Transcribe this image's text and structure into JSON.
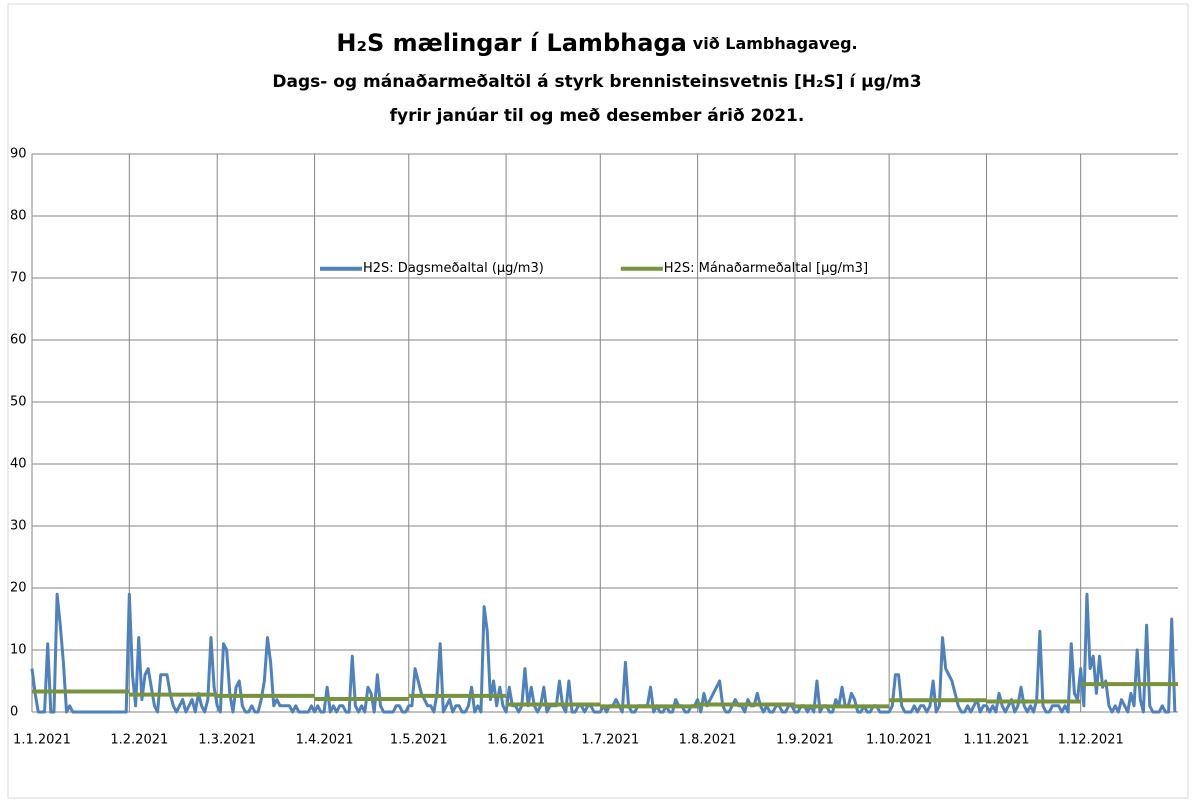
{
  "chart_data": {
    "type": "line",
    "title": {
      "main": "H₂S mælingar í Lambhaga",
      "small": "við Lambhagaveg."
    },
    "subtitle": [
      "Dags- og mánaðarmeðaltöl á styrk brennisteinsvetnis [H₂S] í µg/m3",
      "fyrir janúar til og með desember árið 2021."
    ],
    "xlim": [
      0,
      365
    ],
    "xticks": [
      {
        "value": 0,
        "label": "1.1.2021"
      },
      {
        "value": 31,
        "label": "1.2.2021"
      },
      {
        "value": 59,
        "label": "1.3.2021"
      },
      {
        "value": 90,
        "label": "1.4.2021"
      },
      {
        "value": 120,
        "label": "1.5.2021"
      },
      {
        "value": 151,
        "label": "1.6.2021"
      },
      {
        "value": 181,
        "label": "1.7.2021"
      },
      {
        "value": 212,
        "label": "1.8.2021"
      },
      {
        "value": 243,
        "label": "1.9.2021"
      },
      {
        "value": 273,
        "label": "1.10.2021"
      },
      {
        "value": 304,
        "label": "1.11.2021"
      },
      {
        "value": 334,
        "label": "1.12.2021"
      }
    ],
    "ylim": [
      0,
      90
    ],
    "yticks": [
      0,
      10,
      20,
      30,
      40,
      50,
      60,
      70,
      80,
      90
    ],
    "grid": true,
    "legend": "top",
    "series": [
      {
        "name": "H2S: Dagsmeðaltal (µg/m3)",
        "color": "#4f81bd",
        "values": [
          7,
          3,
          0,
          0,
          0,
          11,
          0,
          0,
          19,
          14,
          8,
          0,
          1,
          0,
          0,
          0,
          0,
          0,
          0,
          0,
          0,
          0,
          0,
          0,
          0,
          0,
          0,
          0,
          0,
          0,
          0,
          19,
          6,
          1,
          12,
          2,
          6,
          7,
          4,
          1,
          0,
          6,
          6,
          6,
          3,
          1,
          0,
          1,
          2,
          0,
          1,
          2,
          0,
          3,
          1,
          0,
          2,
          12,
          4,
          1,
          0,
          11,
          10,
          3,
          0,
          4,
          5,
          1,
          0,
          0,
          1,
          0,
          0,
          2,
          5,
          12,
          8,
          1,
          2,
          1,
          1,
          1,
          1,
          0,
          1,
          0,
          0,
          0,
          0,
          1,
          0,
          1,
          0,
          0,
          4,
          0,
          1,
          0,
          1,
          1,
          0,
          0,
          9,
          1,
          0,
          1,
          0,
          4,
          3,
          0,
          6,
          1,
          0,
          0,
          0,
          0,
          1,
          1,
          0,
          0,
          1,
          1,
          7,
          5,
          3,
          2,
          1,
          1,
          0,
          3,
          11,
          0,
          1,
          2,
          0,
          1,
          1,
          0,
          0,
          1,
          4,
          0,
          1,
          0,
          17,
          13,
          2,
          5,
          1,
          4,
          1,
          0,
          4,
          1,
          1,
          0,
          1,
          7,
          1,
          4,
          1,
          0,
          1,
          4,
          0,
          1,
          1,
          1,
          5,
          1,
          0,
          5,
          0,
          0,
          1,
          1,
          0,
          1,
          1,
          0,
          0,
          0,
          1,
          0,
          1,
          1,
          2,
          1,
          0,
          8,
          1,
          0,
          0,
          1,
          1,
          1,
          1,
          4,
          0,
          1,
          0,
          0,
          1,
          0,
          0,
          2,
          1,
          1,
          0,
          0,
          1,
          1,
          2,
          0,
          3,
          1,
          2,
          3,
          4,
          5,
          1,
          0,
          0,
          1,
          2,
          1,
          1,
          0,
          2,
          1,
          1,
          3,
          1,
          0,
          1,
          0,
          0,
          1,
          1,
          0,
          0,
          1,
          1,
          0,
          0,
          1,
          1,
          0,
          1,
          0,
          5,
          0,
          1,
          1,
          0,
          0,
          2,
          1,
          4,
          1,
          1,
          3,
          2,
          0,
          0,
          1,
          0,
          0,
          1,
          1,
          0,
          0,
          0,
          0,
          1,
          6,
          6,
          1,
          0,
          0,
          0,
          1,
          0,
          1,
          1,
          0,
          1,
          5,
          0,
          1,
          12,
          7,
          6,
          5,
          3,
          1,
          0,
          0,
          1,
          0,
          1,
          2,
          0,
          1,
          1,
          0,
          1,
          0,
          3,
          1,
          0,
          1,
          2,
          0,
          1,
          4,
          1,
          0,
          1,
          0,
          2,
          13,
          1,
          0,
          0,
          1,
          1,
          1,
          0,
          1,
          0,
          11,
          3,
          2,
          7,
          1,
          19,
          7,
          9,
          3,
          9,
          4,
          5,
          1,
          0,
          1,
          0,
          2,
          1,
          0,
          3,
          1,
          10,
          2,
          0,
          14,
          1,
          0,
          0,
          0,
          1,
          0,
          0,
          15,
          0
        ]
      },
      {
        "name": "H2S: Mánaðarmeðaltal [µg/m3]",
        "color": "#77933c",
        "values": [
          3.3,
          2.8,
          2.6,
          2.1,
          2.6,
          1.2,
          0.9,
          1.2,
          0.9,
          1.9,
          1.7,
          4.5
        ]
      }
    ]
  }
}
